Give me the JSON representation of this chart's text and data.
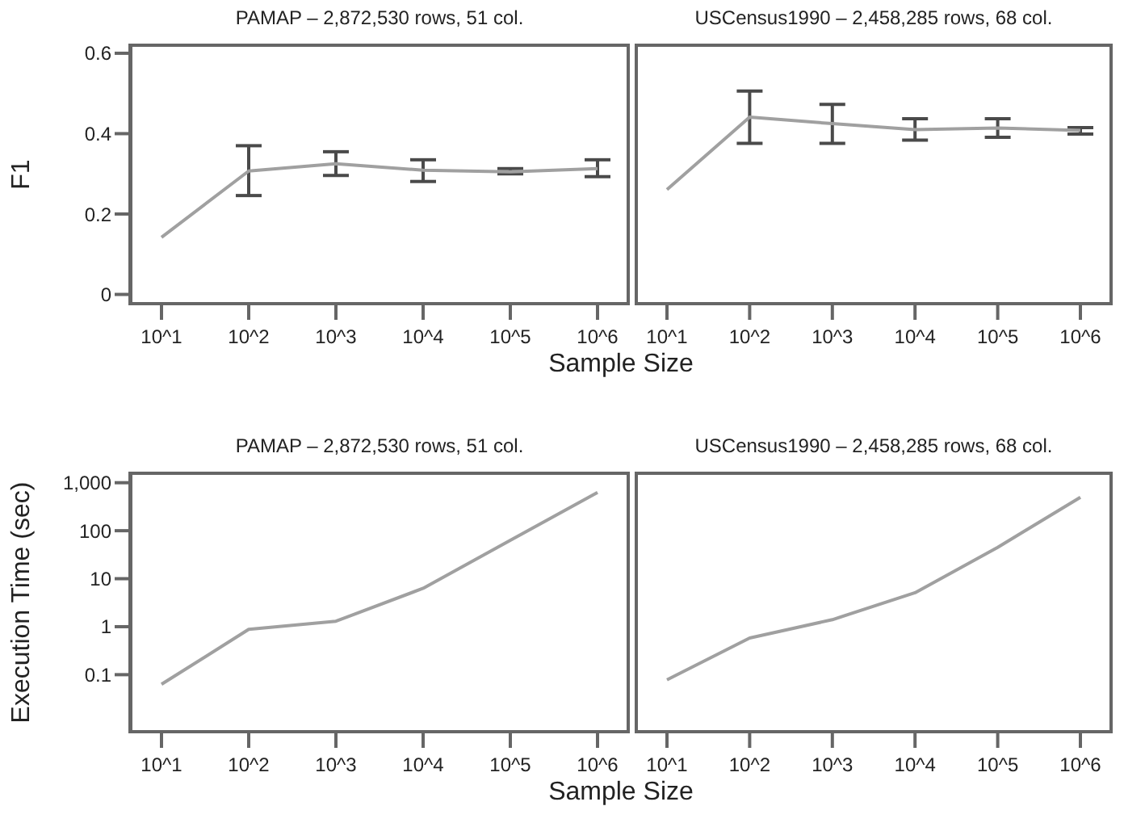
{
  "chart_data": [
    {
      "type": "line",
      "title": "PAMAP – 2,872,530 rows, 51 col.",
      "xlabel": "Sample Size",
      "ylabel": "F1",
      "categories": [
        "10^1",
        "10^2",
        "10^3",
        "10^4",
        "10^5",
        "10^6"
      ],
      "series": [
        {
          "color": "#a0a0a0",
          "values": [
            0.142,
            0.307,
            0.325,
            0.309,
            0.305,
            0.313
          ],
          "errors": [
            null,
            [
              0.246,
              0.37
            ],
            [
              0.296,
              0.355
            ],
            [
              0.281,
              0.335
            ],
            [
              0.3,
              0.313
            ],
            [
              0.293,
              0.335
            ]
          ]
        }
      ],
      "ylim": [
        -0.027,
        0.624
      ],
      "yticks": [
        0,
        0.2,
        0.4,
        0.6
      ]
    },
    {
      "type": "line",
      "title": "USCensus1990 – 2,458,285 rows, 68 col.",
      "categories": [
        "10^1",
        "10^2",
        "10^3",
        "10^4",
        "10^5",
        "10^6"
      ],
      "series": [
        {
          "color": "#a0a0a0",
          "values": [
            0.261,
            0.441,
            0.425,
            0.41,
            0.414,
            0.408
          ],
          "errors": [
            null,
            [
              0.376,
              0.506
            ],
            [
              0.376,
              0.473
            ],
            [
              0.384,
              0.437
            ],
            [
              0.391,
              0.437
            ],
            [
              0.399,
              0.415
            ]
          ]
        }
      ],
      "ylim": [
        -0.027,
        0.624
      ],
      "tick_labels": "x"
    },
    {
      "type": "line",
      "title": "PAMAP – 2,872,530 rows, 51 col.",
      "xlabel": "Sample Size",
      "ylabel": "Execution Time (sec)",
      "categories": [
        "10^1",
        "10^2",
        "10^3",
        "10^4",
        "10^5",
        "10^6"
      ],
      "series": [
        {
          "color": "#a0a0a0",
          "values": [
            0.063,
            0.88,
            1.3,
            6.3,
            63,
            628
          ]
        }
      ],
      "ylim": [
        0.006,
        1700
      ],
      "yticks": [
        0.1,
        1,
        10,
        100,
        {
          "value": 1000,
          "label": "1,000"
        }
      ],
      "log": true
    },
    {
      "type": "line",
      "title": "USCensus1990 – 2,458,285 rows, 68 col.",
      "categories": [
        "10^1",
        "10^2",
        "10^3",
        "10^4",
        "10^5",
        "10^6"
      ],
      "series": [
        {
          "color": "#a0a0a0",
          "values": [
            0.078,
            0.58,
            1.4,
            5.1,
            45,
            498
          ]
        }
      ],
      "ylim": [
        0.006,
        1700
      ],
      "log": true,
      "tick_labels": "x"
    }
  ]
}
